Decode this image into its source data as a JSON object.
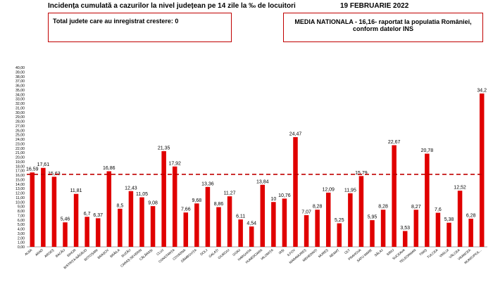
{
  "header": {
    "title": "Incidența cumulată a cazurilor la nivel județean pe 14 zile la ‰ de locuitori",
    "date": "19 FEBRUARIE 2022"
  },
  "info_left": {
    "text": "Total judete care au inregistrat crestere: 0"
  },
  "info_right": {
    "line1": "MEDIA NATIONALA - 16,16-  raportat la populatia României,",
    "line2": "conform datelor INS"
  },
  "colors": {
    "bar": "#e00000",
    "reference_line": "#c00000",
    "box_border": "#c00000"
  },
  "chart_data": {
    "type": "bar",
    "title": "",
    "xlabel": "",
    "ylabel": "",
    "ylim": [
      0,
      40
    ],
    "yticks": [
      "0,00",
      "1,00",
      "2,00",
      "3,00",
      "4,00",
      "5,00",
      "6,00",
      "7,00",
      "8,00",
      "9,00",
      "10,00",
      "11,00",
      "12,00",
      "13,00",
      "14,00",
      "15,00",
      "16,00",
      "17,00",
      "18,00",
      "19,00",
      "20,00",
      "21,00",
      "22,00",
      "23,00",
      "24,00",
      "25,00",
      "26,00",
      "27,00",
      "28,00",
      "29,00",
      "30,00",
      "31,00",
      "32,00",
      "33,00",
      "34,00",
      "35,00",
      "36,00",
      "37,00",
      "38,00",
      "39,00",
      "40,00"
    ],
    "grid": false,
    "reference_line": 16.16,
    "categories": [
      "ALBA",
      "ARAD",
      "ARGEȘ",
      "BACĂU",
      "BIHOR",
      "BISTRIȚA-NĂSĂUD",
      "BOTOȘANI",
      "BRAȘOV",
      "BRĂILA",
      "BUZĂU",
      "CARAȘ-SEVERIN",
      "CĂLĂRAȘI",
      "CLUJ",
      "CONSTANȚA",
      "COVASNA",
      "DÂMBOVIȚA",
      "DOLJ",
      "GALAȚI",
      "GIURGIU",
      "GORJ",
      "HARGHITA",
      "HUNEDOARA",
      "IALOMIȚA",
      "IAȘI",
      "ILFOV",
      "MARAMUREȘ",
      "MEHEDINȚI",
      "MUREȘ",
      "NEAMȚ",
      "OLT",
      "PRAHOVA",
      "SATU MARE",
      "SĂLAJ",
      "SIBIU",
      "SUCEAVA",
      "TELEORMAN",
      "TIMIȘ",
      "TULCEA",
      "VASLUI",
      "VÂLCEA",
      "VRANCEA",
      "MUNICIPIUL..."
    ],
    "values": [
      16.59,
      17.61,
      15.63,
      5.46,
      11.81,
      6.7,
      6.37,
      16.86,
      8.5,
      12.43,
      11.05,
      9.08,
      21.35,
      17.92,
      7.66,
      9.68,
      13.36,
      8.86,
      11.27,
      6.11,
      4.54,
      13.84,
      10,
      10.76,
      24.47,
      7.07,
      8.28,
      12.09,
      5.25,
      11.95,
      15.79,
      5.95,
      8.28,
      22.67,
      3.53,
      8.27,
      20.78,
      7.6,
      5.38,
      12.52,
      6.28,
      34.2
    ],
    "value_labels": [
      "16,59",
      "17,61",
      "15,63",
      "5,46",
      "11,81",
      "6,7",
      "6,37",
      "16,86",
      "8,5",
      "12,43",
      "11,05",
      "9,08",
      "21,35",
      "17,92",
      "7,66",
      "9,68",
      "13,36",
      "8,86",
      "11,27",
      "6,11",
      "4,54",
      "13,84",
      "10",
      "10,76",
      "24,47",
      "7,07",
      "8,28",
      "12,09",
      "5,25",
      "11,95",
      "15,79",
      "5,95",
      "8,28",
      "22,67",
      "3,53",
      "8,27",
      "20,78",
      "7,6",
      "5,38",
      "12,52",
      "6,28",
      "34,2"
    ]
  }
}
